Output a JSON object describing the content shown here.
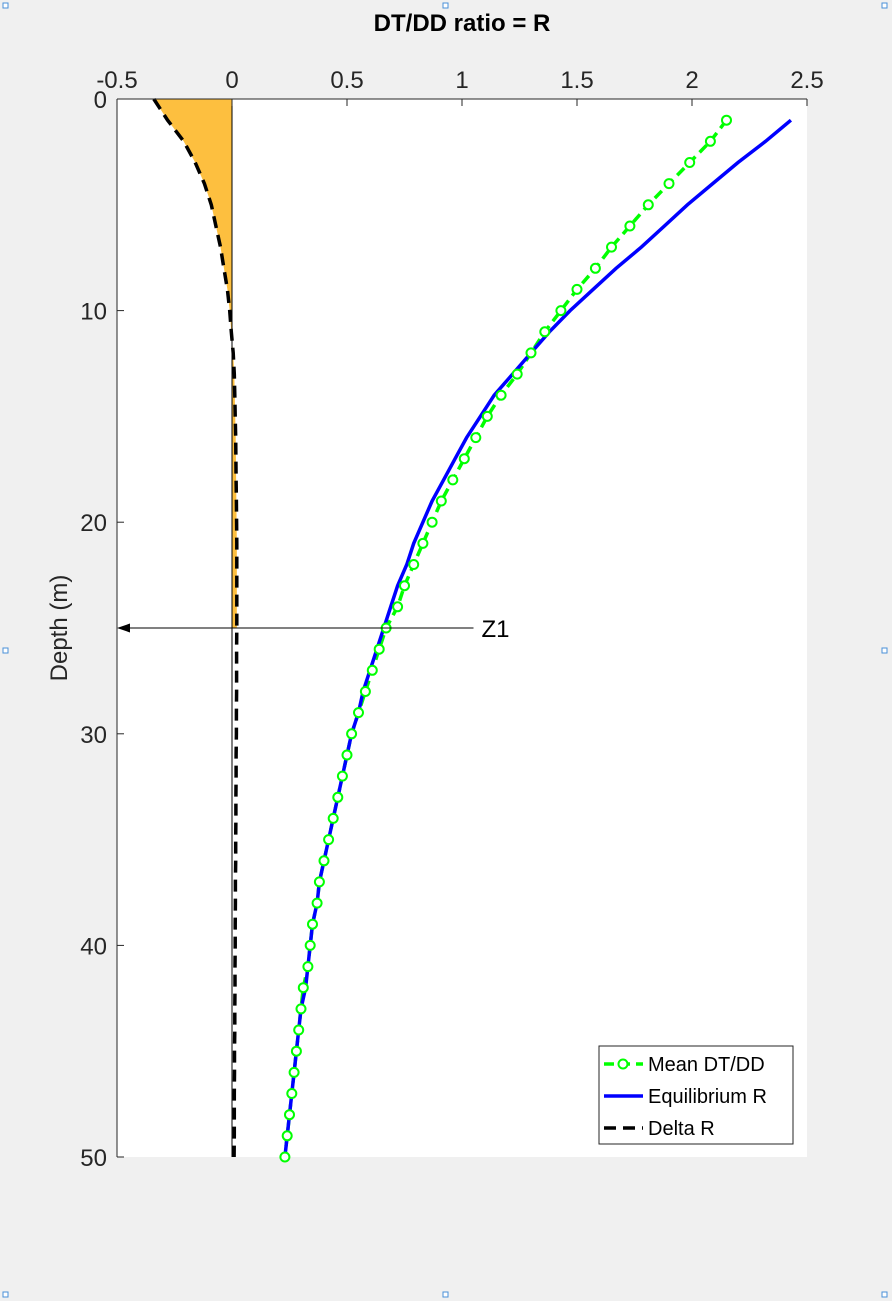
{
  "chart_data": {
    "type": "line",
    "title": "DT/DD ratio = R",
    "xlabel": "",
    "ylabel": "Depth (m)",
    "xlim": [
      -0.5,
      2.5
    ],
    "ylim": [
      0,
      50
    ],
    "y_reversed": true,
    "x_axis_position": "top",
    "xticks": [
      -0.5,
      0,
      0.5,
      1,
      1.5,
      2,
      2.5
    ],
    "xtick_labels": [
      "-0.5",
      "0",
      "0.5",
      "1",
      "1.5",
      "2",
      "2.5"
    ],
    "yticks": [
      0,
      10,
      20,
      30,
      40,
      50
    ],
    "ytick_labels": [
      "0",
      "10",
      "20",
      "30",
      "40",
      "50"
    ],
    "grid": false,
    "legend_position": "bottom-right",
    "series": [
      {
        "name": "Mean DT/DD",
        "color": "#00ff00",
        "style": "dashed-circle-markers",
        "depth": [
          1,
          2,
          3,
          4,
          5,
          6,
          7,
          8,
          9,
          10,
          11,
          12,
          13,
          14,
          15,
          16,
          17,
          18,
          19,
          20,
          21,
          22,
          23,
          24,
          25,
          26,
          27,
          28,
          29,
          30,
          31,
          32,
          33,
          34,
          35,
          36,
          37,
          38,
          39,
          40,
          41,
          42,
          43,
          44,
          45,
          46,
          47,
          48,
          49,
          50
        ],
        "values": [
          2.15,
          2.08,
          1.99,
          1.9,
          1.81,
          1.73,
          1.65,
          1.58,
          1.5,
          1.43,
          1.36,
          1.3,
          1.24,
          1.17,
          1.11,
          1.06,
          1.01,
          0.96,
          0.91,
          0.87,
          0.83,
          0.79,
          0.75,
          0.72,
          0.67,
          0.64,
          0.61,
          0.58,
          0.55,
          0.52,
          0.5,
          0.48,
          0.46,
          0.44,
          0.42,
          0.4,
          0.38,
          0.37,
          0.35,
          0.34,
          0.33,
          0.31,
          0.3,
          0.29,
          0.28,
          0.27,
          0.26,
          0.25,
          0.24,
          0.23
        ]
      },
      {
        "name": "Equilibrium R",
        "color": "#0000ff",
        "style": "solid",
        "depth": [
          1,
          2,
          3,
          4,
          5,
          6,
          7,
          8,
          9,
          10,
          11,
          12,
          13,
          14,
          15,
          16,
          17,
          18,
          19,
          20,
          21,
          22,
          23,
          24,
          25,
          26,
          27,
          28,
          29,
          30,
          31,
          32,
          33,
          34,
          35,
          36,
          37,
          38,
          39,
          40,
          41,
          42,
          43,
          44,
          45,
          46,
          47,
          48,
          49,
          50
        ],
        "values": [
          2.43,
          2.32,
          2.2,
          2.09,
          1.98,
          1.88,
          1.78,
          1.67,
          1.57,
          1.47,
          1.38,
          1.3,
          1.22,
          1.14,
          1.08,
          1.02,
          0.97,
          0.92,
          0.87,
          0.83,
          0.79,
          0.76,
          0.72,
          0.69,
          0.66,
          0.63,
          0.6,
          0.57,
          0.55,
          0.52,
          0.5,
          0.48,
          0.46,
          0.44,
          0.42,
          0.4,
          0.38,
          0.37,
          0.35,
          0.34,
          0.33,
          0.32,
          0.3,
          0.29,
          0.28,
          0.27,
          0.26,
          0.25,
          0.24,
          0.23
        ]
      },
      {
        "name": "Delta R",
        "color": "#000000",
        "style": "dashed",
        "depth": [
          0,
          1,
          2,
          3,
          4,
          5,
          6,
          7,
          8,
          9,
          10,
          11,
          12,
          13,
          14,
          15,
          16,
          17,
          18,
          19,
          20,
          21,
          22,
          23,
          24,
          25,
          26,
          27,
          28,
          29,
          30,
          31,
          32,
          33,
          34,
          35,
          36,
          37,
          38,
          39,
          40,
          41,
          42,
          43,
          44,
          45,
          46,
          47,
          48,
          49,
          50
        ],
        "values": [
          -0.34,
          -0.28,
          -0.21,
          -0.16,
          -0.12,
          -0.09,
          -0.07,
          -0.05,
          -0.035,
          -0.02,
          -0.01,
          -0.003,
          0.005,
          0.01,
          0.012,
          0.014,
          0.016,
          0.017,
          0.018,
          0.019,
          0.02,
          0.021,
          0.021,
          0.021,
          0.021,
          0.021,
          0.02,
          0.02,
          0.02,
          0.019,
          0.019,
          0.018,
          0.018,
          0.017,
          0.017,
          0.016,
          0.016,
          0.015,
          0.015,
          0.014,
          0.014,
          0.013,
          0.013,
          0.012,
          0.012,
          0.011,
          0.011,
          0.01,
          0.01,
          0.01,
          0.009
        ]
      }
    ],
    "shaded_area": {
      "color": "#fdbf3f",
      "between": "Delta R and 0",
      "depth_range": [
        0,
        25
      ]
    },
    "zero_line": {
      "x": 0,
      "color": "#000000"
    },
    "annotations": [
      {
        "text": "Z1",
        "type": "arrow",
        "depth": 25,
        "x_from": 1.05,
        "x_to": -0.5
      }
    ]
  }
}
